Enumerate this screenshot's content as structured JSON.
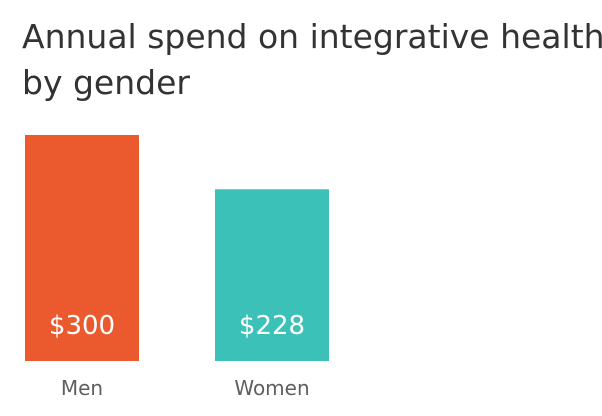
{
  "title_line1": "Annual spend on integrative health",
  "title_line2": "by gender",
  "chart_data": {
    "type": "bar",
    "title": "Annual spend on integrative health by gender",
    "categories": [
      "Men",
      "Women"
    ],
    "values": [
      300,
      228
    ],
    "value_labels": [
      "$300",
      "$228"
    ],
    "colors": [
      "#eb5a2e",
      "#3cc1b8"
    ],
    "xlabel": "",
    "ylabel": "",
    "ylim": [
      0,
      300
    ],
    "grid": false,
    "legend": "none"
  }
}
